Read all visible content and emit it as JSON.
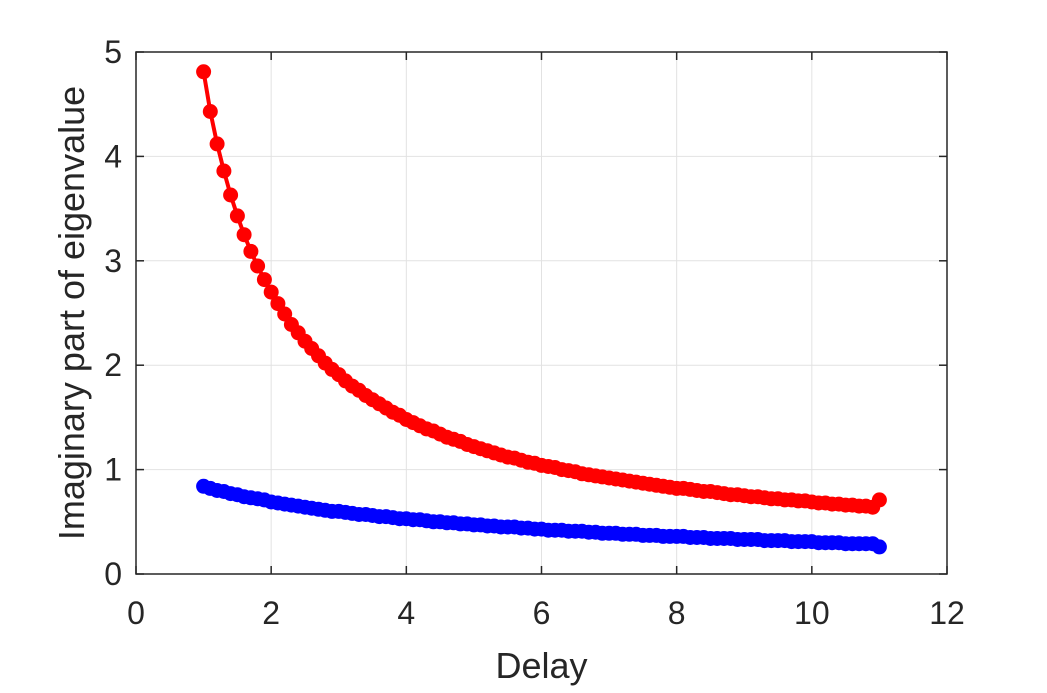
{
  "chart_data": {
    "type": "line",
    "title": "",
    "xlabel": "Delay",
    "ylabel": "Imaginary part of eigenvalue",
    "xlim": [
      0,
      12
    ],
    "ylim": [
      0,
      5
    ],
    "xticks": [
      0,
      2,
      4,
      6,
      8,
      10,
      12
    ],
    "yticks": [
      0,
      1,
      2,
      3,
      4,
      5
    ],
    "xtick_labels": [
      "0",
      "2",
      "4",
      "6",
      "8",
      "10",
      "12"
    ],
    "ytick_labels": [
      "0",
      "1",
      "2",
      "3",
      "4",
      "5"
    ],
    "grid": true,
    "box": true,
    "x": [
      1.0,
      1.1,
      1.2,
      1.3,
      1.4,
      1.5,
      1.6,
      1.7,
      1.8,
      1.9,
      2.0,
      2.1,
      2.2,
      2.3,
      2.4,
      2.5,
      2.6,
      2.7,
      2.8,
      2.9,
      3.0,
      3.1,
      3.2,
      3.3,
      3.4,
      3.5,
      3.6,
      3.7,
      3.8,
      3.9,
      4.0,
      4.1,
      4.2,
      4.3,
      4.4,
      4.5,
      4.6,
      4.7,
      4.8,
      4.9,
      5.0,
      5.1,
      5.2,
      5.3,
      5.4,
      5.5,
      5.6,
      5.7,
      5.8,
      5.9,
      6.0,
      6.1,
      6.2,
      6.3,
      6.4,
      6.5,
      6.6,
      6.7,
      6.8,
      6.9,
      7.0,
      7.1,
      7.2,
      7.3,
      7.4,
      7.5,
      7.6,
      7.7,
      7.8,
      7.9,
      8.0,
      8.1,
      8.2,
      8.3,
      8.4,
      8.5,
      8.6,
      8.7,
      8.8,
      8.9,
      9.0,
      9.1,
      9.2,
      9.3,
      9.4,
      9.5,
      9.6,
      9.7,
      9.8,
      9.9,
      10.0,
      10.1,
      10.2,
      10.3,
      10.4,
      10.5,
      10.6,
      10.7,
      10.8,
      10.9,
      11.0
    ],
    "series": [
      {
        "color": "#ff0000",
        "marker": "filled-circle",
        "values": [
          4.81,
          4.43,
          4.12,
          3.86,
          3.63,
          3.43,
          3.25,
          3.09,
          2.95,
          2.82,
          2.7,
          2.59,
          2.49,
          2.39,
          2.31,
          2.23,
          2.16,
          2.09,
          2.02,
          1.96,
          1.91,
          1.85,
          1.8,
          1.76,
          1.71,
          1.67,
          1.63,
          1.59,
          1.55,
          1.52,
          1.48,
          1.45,
          1.42,
          1.39,
          1.37,
          1.34,
          1.31,
          1.29,
          1.27,
          1.24,
          1.22,
          1.2,
          1.18,
          1.16,
          1.14,
          1.12,
          1.11,
          1.09,
          1.07,
          1.06,
          1.04,
          1.03,
          1.02,
          1.0,
          0.99,
          0.98,
          0.96,
          0.95,
          0.94,
          0.93,
          0.92,
          0.91,
          0.9,
          0.89,
          0.88,
          0.87,
          0.86,
          0.85,
          0.84,
          0.83,
          0.82,
          0.82,
          0.81,
          0.8,
          0.79,
          0.79,
          0.78,
          0.77,
          0.76,
          0.76,
          0.75,
          0.74,
          0.74,
          0.73,
          0.72,
          0.72,
          0.71,
          0.71,
          0.7,
          0.7,
          0.69,
          0.68,
          0.68,
          0.67,
          0.67,
          0.66,
          0.66,
          0.65,
          0.65,
          0.64,
          0.71
        ]
      },
      {
        "color": "#0000ff",
        "marker": "filled-circle",
        "values": [
          0.84,
          0.82,
          0.8,
          0.79,
          0.77,
          0.76,
          0.74,
          0.73,
          0.72,
          0.71,
          0.69,
          0.68,
          0.67,
          0.66,
          0.65,
          0.64,
          0.63,
          0.62,
          0.61,
          0.6,
          0.6,
          0.59,
          0.58,
          0.57,
          0.57,
          0.56,
          0.55,
          0.55,
          0.54,
          0.53,
          0.53,
          0.52,
          0.52,
          0.51,
          0.5,
          0.5,
          0.49,
          0.49,
          0.48,
          0.48,
          0.47,
          0.47,
          0.46,
          0.46,
          0.45,
          0.45,
          0.45,
          0.44,
          0.44,
          0.43,
          0.43,
          0.42,
          0.42,
          0.42,
          0.41,
          0.41,
          0.41,
          0.4,
          0.4,
          0.39,
          0.39,
          0.39,
          0.38,
          0.38,
          0.38,
          0.37,
          0.37,
          0.37,
          0.36,
          0.36,
          0.36,
          0.36,
          0.35,
          0.35,
          0.35,
          0.34,
          0.34,
          0.34,
          0.34,
          0.33,
          0.33,
          0.33,
          0.33,
          0.32,
          0.32,
          0.32,
          0.32,
          0.31,
          0.31,
          0.31,
          0.31,
          0.3,
          0.3,
          0.3,
          0.3,
          0.29,
          0.29,
          0.29,
          0.29,
          0.29,
          0.26
        ]
      }
    ]
  }
}
